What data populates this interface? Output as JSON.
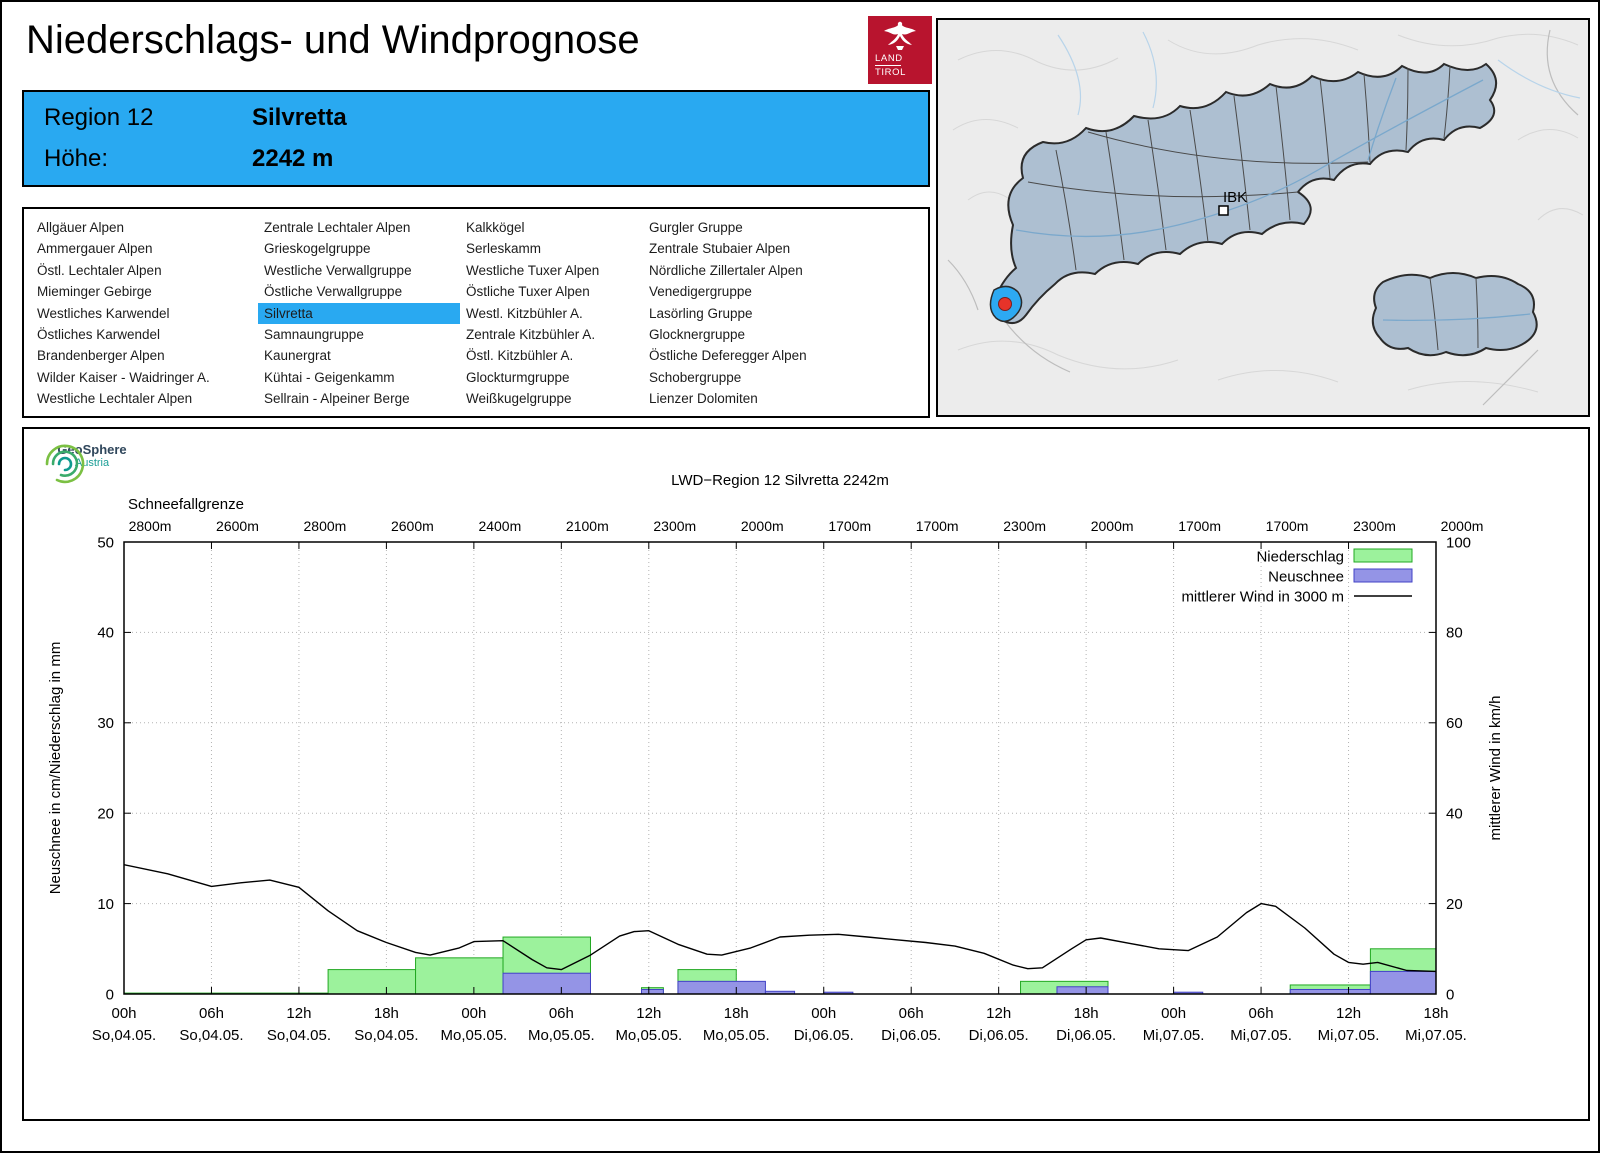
{
  "header": {
    "title": "Niederschlags- und Windprognose",
    "logo": {
      "line1": "LAND",
      "line2": "TIROL"
    }
  },
  "map": {
    "city_label": "IBK"
  },
  "region_box": {
    "region_label": "Region 12",
    "region_value": "Silvretta",
    "altitude_label": "Höhe:",
    "altitude_value": "2242 m"
  },
  "region_list": {
    "selected": "Silvretta",
    "columns": [
      [
        "Allgäuer Alpen",
        "Ammergauer Alpen",
        "Östl. Lechtaler Alpen",
        "Mieminger Gebirge",
        "Westliches Karwendel",
        "Östliches Karwendel",
        "Brandenberger Alpen",
        "Wilder Kaiser - Waidringer A.",
        "Westliche Lechtaler Alpen"
      ],
      [
        "Zentrale Lechtaler Alpen",
        "Grieskogelgruppe",
        "Westliche Verwallgruppe",
        "Östliche Verwallgruppe",
        "Silvretta",
        "Samnaungruppe",
        "Kaunergrat",
        "Kühtai - Geigenkamm",
        "Sellrain - Alpeiner Berge"
      ],
      [
        "Kalkkögel",
        "Serleskamm",
        "Westliche Tuxer Alpen",
        "Östliche Tuxer Alpen",
        "Westl. Kitzbühler A.",
        "Zentrale Kitzbühler A.",
        "Östl. Kitzbühler A.",
        "Glockturmgruppe",
        "Weißkugelgruppe"
      ],
      [
        "Gurgler Gruppe",
        "Zentrale Stubaier Alpen",
        "Nördliche Zillertaler Alpen",
        "Venedigergruppe",
        "Lasörling Gruppe",
        "Glocknergruppe",
        "Östliche Deferegger Alpen",
        "Schobergruppe",
        "Lienzer Dolomiten"
      ]
    ]
  },
  "brand": {
    "geosphere_line1": "GeoSphere",
    "geosphere_line2": "Austria"
  },
  "colors": {
    "accent_blue": "#29a9f1",
    "logo_red": "#b8142e",
    "map_region_fill": "#adbfd1",
    "map_highlight_blue": "#2da9f2",
    "location_dot_red": "#e63329"
  },
  "chart_data": {
    "type": "bar",
    "title": "LWD−Region 12 Silvretta 2242m",
    "snowline_label": "Schneefallgrenze",
    "snowline_values": [
      "2800m",
      "2600m",
      "2800m",
      "2600m",
      "2400m",
      "2100m",
      "2300m",
      "2000m",
      "1700m",
      "1700m",
      "2300m",
      "2000m",
      "1700m",
      "1700m",
      "2300m",
      "2000m"
    ],
    "ylabel_left": "Neuschnee in cm/Niederschlag in mm",
    "ylabel_right": "mittlerer Wind in km/h",
    "ylim_left": [
      0,
      50
    ],
    "ylim_right": [
      0,
      100
    ],
    "yticks_left": [
      0,
      10,
      20,
      30,
      40,
      50
    ],
    "yticks_right": [
      0,
      20,
      40,
      60,
      80,
      100
    ],
    "x_hours_range": [
      0,
      90
    ],
    "grid": true,
    "legend_position": "top-right",
    "legend": [
      {
        "label": "Niederschlag",
        "type": "box",
        "fill": "#9cf29c",
        "stroke": "#22a822"
      },
      {
        "label": "Neuschnee",
        "type": "box",
        "fill": "#9494e6",
        "stroke": "#4242c6"
      },
      {
        "label": "mittlerer Wind in 3000 m",
        "type": "line",
        "stroke": "#000000"
      }
    ],
    "xticks": [
      {
        "hour": 0,
        "time": "00h",
        "date": "So,04.05."
      },
      {
        "hour": 6,
        "time": "06h",
        "date": "So,04.05."
      },
      {
        "hour": 12,
        "time": "12h",
        "date": "So,04.05."
      },
      {
        "hour": 18,
        "time": "18h",
        "date": "So,04.05."
      },
      {
        "hour": 24,
        "time": "00h",
        "date": "Mo,05.05."
      },
      {
        "hour": 30,
        "time": "06h",
        "date": "Mo,05.05."
      },
      {
        "hour": 36,
        "time": "12h",
        "date": "Mo,05.05."
      },
      {
        "hour": 42,
        "time": "18h",
        "date": "Mo,05.05."
      },
      {
        "hour": 48,
        "time": "00h",
        "date": "Di,06.05."
      },
      {
        "hour": 54,
        "time": "06h",
        "date": "Di,06.05."
      },
      {
        "hour": 60,
        "time": "12h",
        "date": "Di,06.05."
      },
      {
        "hour": 66,
        "time": "18h",
        "date": "Di,06.05."
      },
      {
        "hour": 72,
        "time": "00h",
        "date": "Mi,07.05."
      },
      {
        "hour": 78,
        "time": "06h",
        "date": "Mi,07.05."
      },
      {
        "hour": 84,
        "time": "12h",
        "date": "Mi,07.05."
      },
      {
        "hour": 90,
        "time": "18h",
        "date": "Mi,07.05."
      }
    ],
    "series": {
      "niederschlag_mm": [
        {
          "start": 0,
          "end": 14,
          "value": 0.1
        },
        {
          "start": 14,
          "end": 20,
          "value": 2.7
        },
        {
          "start": 20,
          "end": 26,
          "value": 4.0
        },
        {
          "start": 26,
          "end": 32,
          "value": 6.3
        },
        {
          "start": 35.5,
          "end": 37,
          "value": 0.7
        },
        {
          "start": 38,
          "end": 42,
          "value": 2.7
        },
        {
          "start": 61.5,
          "end": 67.5,
          "value": 1.4
        },
        {
          "start": 80,
          "end": 85.5,
          "value": 1.0
        },
        {
          "start": 85.5,
          "end": 90,
          "value": 5.0
        }
      ],
      "neuschnee_cm": [
        {
          "start": 26,
          "end": 32,
          "value": 2.3
        },
        {
          "start": 35.5,
          "end": 37,
          "value": 0.5
        },
        {
          "start": 38,
          "end": 44,
          "value": 1.4
        },
        {
          "start": 44,
          "end": 46,
          "value": 0.3
        },
        {
          "start": 48,
          "end": 50,
          "value": 0.2
        },
        {
          "start": 64,
          "end": 67.5,
          "value": 0.8
        },
        {
          "start": 72,
          "end": 74,
          "value": 0.2
        },
        {
          "start": 80,
          "end": 85.5,
          "value": 0.5
        },
        {
          "start": 85.5,
          "end": 90,
          "value": 2.5
        }
      ],
      "wind_kmh": [
        [
          0,
          28.6
        ],
        [
          3,
          26.6
        ],
        [
          6,
          23.8
        ],
        [
          8,
          24.6
        ],
        [
          10,
          25.2
        ],
        [
          12,
          23.6
        ],
        [
          14,
          18.4
        ],
        [
          16,
          14.0
        ],
        [
          18,
          11.4
        ],
        [
          20,
          9.2
        ],
        [
          21,
          8.6
        ],
        [
          23,
          10.2
        ],
        [
          24,
          11.6
        ],
        [
          26,
          11.8
        ],
        [
          28,
          7.6
        ],
        [
          29,
          5.8
        ],
        [
          30,
          5.4
        ],
        [
          32,
          8.6
        ],
        [
          34,
          12.8
        ],
        [
          35,
          13.8
        ],
        [
          36,
          14.0
        ],
        [
          38,
          11.0
        ],
        [
          40,
          8.8
        ],
        [
          41,
          8.6
        ],
        [
          43,
          10.2
        ],
        [
          45,
          12.6
        ],
        [
          47,
          13.0
        ],
        [
          49,
          13.2
        ],
        [
          51,
          12.6
        ],
        [
          53,
          12.0
        ],
        [
          55,
          11.4
        ],
        [
          57,
          10.6
        ],
        [
          59,
          9.0
        ],
        [
          61,
          6.4
        ],
        [
          62,
          5.6
        ],
        [
          63,
          5.8
        ],
        [
          65,
          10.0
        ],
        [
          66,
          12.0
        ],
        [
          67,
          12.4
        ],
        [
          69,
          11.2
        ],
        [
          71,
          10.0
        ],
        [
          73,
          9.6
        ],
        [
          75,
          12.6
        ],
        [
          77,
          18.0
        ],
        [
          78,
          20.0
        ],
        [
          79,
          19.4
        ],
        [
          81,
          14.6
        ],
        [
          83,
          8.8
        ],
        [
          84,
          7.0
        ],
        [
          85,
          6.6
        ],
        [
          86,
          7.0
        ],
        [
          88,
          5.2
        ],
        [
          90,
          5.0
        ]
      ]
    }
  }
}
